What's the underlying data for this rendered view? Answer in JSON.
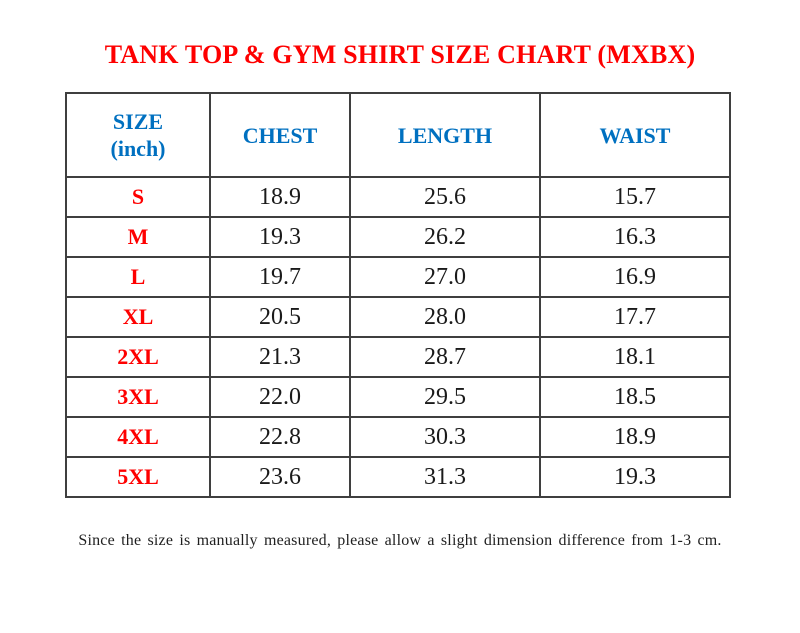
{
  "title": "TANK TOP & GYM SHIRT SIZE CHART (MXBX)",
  "table": {
    "header": {
      "size_line1": "SIZE",
      "size_line2": "(inch)",
      "chest": "CHEST",
      "length": "LENGTH",
      "waist": "WAIST"
    },
    "rows": [
      {
        "size": "S",
        "chest": "18.9",
        "length": "25.6",
        "waist": "15.7"
      },
      {
        "size": "M",
        "chest": "19.3",
        "length": "26.2",
        "waist": "16.3"
      },
      {
        "size": "L",
        "chest": "19.7",
        "length": "27.0",
        "waist": "16.9"
      },
      {
        "size": "XL",
        "chest": "20.5",
        "length": "28.0",
        "waist": "17.7"
      },
      {
        "size": "2XL",
        "chest": "21.3",
        "length": "28.7",
        "waist": "18.1"
      },
      {
        "size": "3XL",
        "chest": "22.0",
        "length": "29.5",
        "waist": "18.5"
      },
      {
        "size": "4XL",
        "chest": "22.8",
        "length": "30.3",
        "waist": "18.9"
      },
      {
        "size": "5XL",
        "chest": "23.6",
        "length": "31.3",
        "waist": "19.3"
      }
    ]
  },
  "note": "Since the size is manually measured, please allow a slight dimension difference from 1-3 cm.",
  "colors": {
    "title_red": "#fe0000",
    "header_blue": "#0070c0",
    "size_label_red": "#fe0000",
    "value_black": "#1a1a1a",
    "border_gray": "#3f3f3f",
    "background": "#ffffff"
  }
}
